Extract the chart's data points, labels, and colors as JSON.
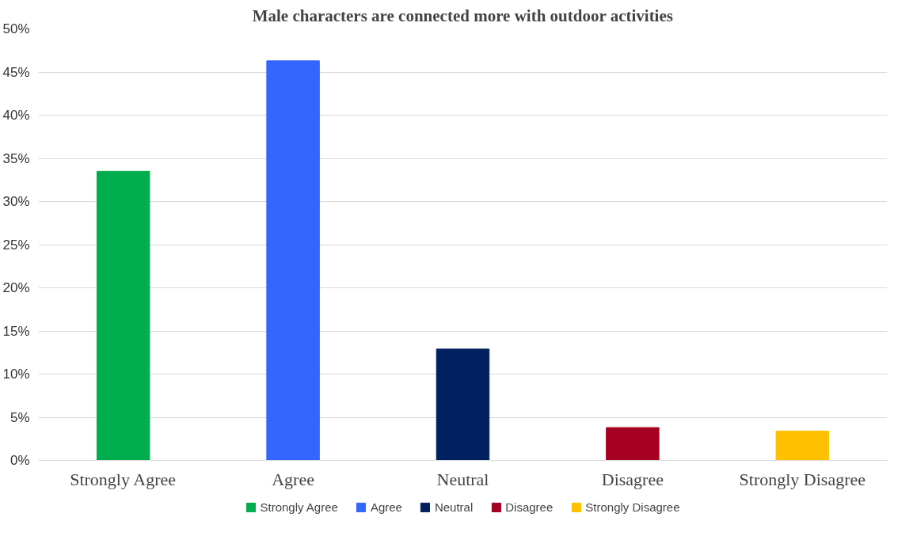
{
  "chart_data": {
    "type": "bar",
    "title": "Male characters are connected more with outdoor activities",
    "categories": [
      "Strongly Agree",
      "Agree",
      "Neutral",
      "Disagree",
      "Strongly Disagree"
    ],
    "series": [
      {
        "name": "Strongly Agree",
        "color": "#00ad4e",
        "values": [
          33.5,
          null,
          null,
          null,
          null
        ]
      },
      {
        "name": "Agree",
        "color": "#3366ff",
        "values": [
          null,
          46.3,
          null,
          null,
          null
        ]
      },
      {
        "name": "Neutral",
        "color": "#002060",
        "values": [
          null,
          null,
          12.9,
          null,
          null
        ]
      },
      {
        "name": "Disagree",
        "color": "#a50021",
        "values": [
          null,
          null,
          null,
          3.8,
          null
        ]
      },
      {
        "name": "Strongly Disagree",
        "color": "#ffc000",
        "values": [
          null,
          null,
          null,
          null,
          3.4
        ]
      }
    ],
    "ylim": [
      0,
      50
    ],
    "yticks": [
      {
        "value": 0,
        "label": "0%"
      },
      {
        "value": 5,
        "label": "5%"
      },
      {
        "value": 10,
        "label": "10%"
      },
      {
        "value": 15,
        "label": "15%"
      },
      {
        "value": 20,
        "label": "20%"
      },
      {
        "value": 25,
        "label": "25%"
      },
      {
        "value": 30,
        "label": "30%"
      },
      {
        "value": 35,
        "label": "35%"
      },
      {
        "value": 40,
        "label": "40%"
      },
      {
        "value": 45,
        "label": "45%"
      },
      {
        "value": 50,
        "label": "50%"
      }
    ],
    "grid": "y",
    "legend": "bottom"
  }
}
